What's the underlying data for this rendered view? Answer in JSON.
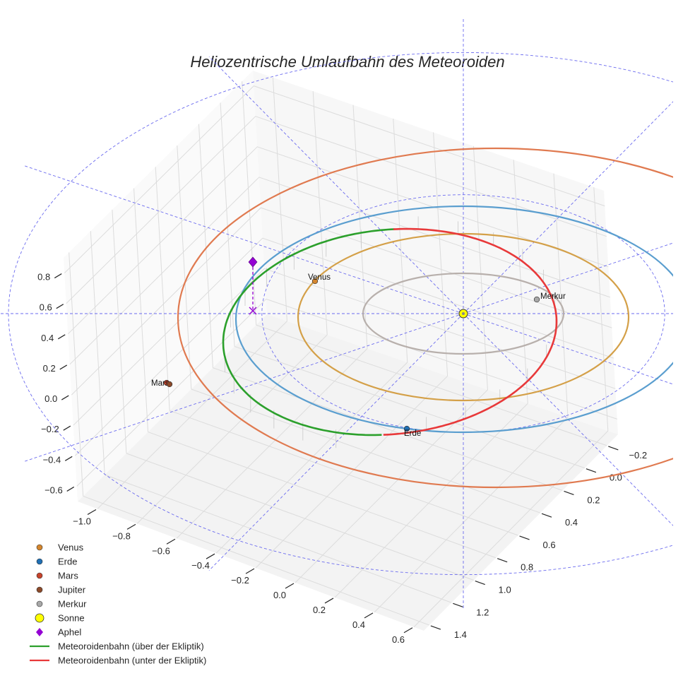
{
  "chart_data": {
    "type": "3d-line",
    "title": "Heliozentrische Umlaufbahn des Meteoroiden",
    "xlabel": "",
    "ylabel": "",
    "zlabel": "",
    "grid": true,
    "legend_position": "bottom-left",
    "axes": {
      "x": {
        "range": [
          -1.1,
          0.65
        ],
        "ticks": [
          -1.0,
          -0.8,
          -0.6,
          -0.4,
          -0.2,
          0.0,
          0.2,
          0.4,
          0.6
        ],
        "tick_labels": [
          "−1.0",
          "−0.8",
          "−0.6",
          "−0.4",
          "−0.2",
          "0.0",
          "0.2",
          "0.4",
          "0.6"
        ]
      },
      "y": {
        "range": [
          -0.3,
          1.45
        ],
        "ticks": [
          -0.2,
          0.0,
          0.2,
          0.4,
          0.6,
          0.8,
          1.0,
          1.2,
          1.4
        ],
        "tick_labels": [
          "−0.2",
          "0.0",
          "0.2",
          "0.4",
          "0.6",
          "0.8",
          "1.0",
          "1.2",
          "1.4"
        ]
      },
      "z": {
        "range": [
          -0.7,
          0.9
        ],
        "ticks": [
          -0.6,
          -0.4,
          -0.2,
          0.0,
          0.2,
          0.4,
          0.6,
          0.8
        ],
        "tick_labels": [
          "−0.6",
          "−0.4",
          "−0.2",
          "0.0",
          "0.2",
          "0.4",
          "0.6",
          "0.8"
        ]
      }
    },
    "orbits": [
      {
        "name": "Merkur",
        "semi_major_axis_au": 0.39,
        "color": "#b8b0ac"
      },
      {
        "name": "Venus",
        "semi_major_axis_au": 0.72,
        "color": "#d4a048"
      },
      {
        "name": "Erde",
        "semi_major_axis_au": 1.0,
        "color": "#5a9ecf"
      },
      {
        "name": "Mars",
        "semi_major_axis_au": 1.52,
        "color": "#e07a50"
      }
    ],
    "meteoroid_orbit": {
      "perihelion_au": 0.5,
      "aphelion_au": 1.03,
      "segments": [
        {
          "name": "Meteoroidenbahn (über der Ekliptik)",
          "color": "#2ca02c"
        },
        {
          "name": "Meteoroidenbahn (unter der Ekliptik)",
          "color": "#e8393a"
        }
      ]
    },
    "bodies": [
      {
        "name": "Venus",
        "label": "Venus",
        "color": "#d4862e"
      },
      {
        "name": "Erde",
        "label": "Erde",
        "color": "#1f6fb4"
      },
      {
        "name": "Mars",
        "label": "Mars",
        "color": "#c6432b"
      },
      {
        "name": "Jupiter",
        "label": "",
        "color": "#8c4a2a"
      },
      {
        "name": "Merkur",
        "label": "Merkur",
        "color": "#a8a8a8"
      },
      {
        "name": "Sonne",
        "label": "",
        "color": "#ffff00"
      },
      {
        "name": "Aphel",
        "label": "",
        "color": "#9400d3"
      }
    ],
    "legend": [
      {
        "label": "Venus",
        "marker": "circle",
        "color": "#d4862e"
      },
      {
        "label": "Erde",
        "marker": "circle",
        "color": "#1f6fb4"
      },
      {
        "label": "Mars",
        "marker": "circle",
        "color": "#c6432b"
      },
      {
        "label": "Jupiter",
        "marker": "circle",
        "color": "#8c4a2a"
      },
      {
        "label": "Merkur",
        "marker": "circle",
        "color": "#a8a8a8"
      },
      {
        "label": "Sonne",
        "marker": "circle-large",
        "color": "#ffff00"
      },
      {
        "label": "Aphel",
        "marker": "diamond",
        "color": "#9400d3"
      },
      {
        "label": "Meteoroidenbahn (über der Ekliptik)",
        "marker": "line",
        "color": "#2ca02c"
      },
      {
        "label": "Meteoroidenbahn (unter der Ekliptik)",
        "marker": "line",
        "color": "#e8393a"
      }
    ],
    "reference_grid": {
      "color": "#6b6bef",
      "style": "dashed"
    }
  }
}
